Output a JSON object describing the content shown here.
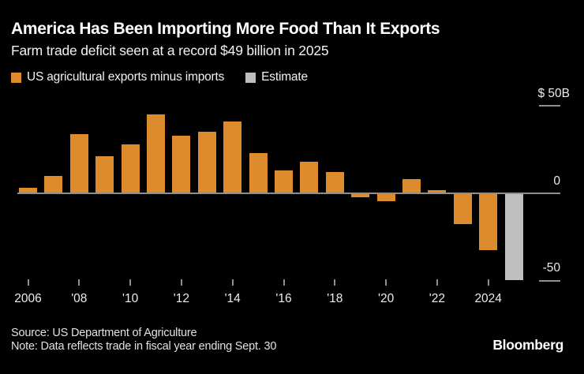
{
  "header": {
    "title": "America Has Been Importing More Food Than It Exports",
    "subtitle": "Farm trade deficit seen at a record $49 billion in 2025"
  },
  "legend": {
    "series": {
      "label": "US agricultural exports minus imports",
      "color": "#DD8C2D"
    },
    "estimate": {
      "label": "Estimate",
      "color": "#BFBFBF"
    }
  },
  "axis": {
    "y_top_label": "$ 50B",
    "y_zero_label": "0",
    "y_bottom_label": "-50",
    "x_tick_labels": [
      "2006",
      "'08",
      "'10",
      "'12",
      "'14",
      "'16",
      "'18",
      "'20",
      "'22",
      "2024"
    ]
  },
  "chart_data": {
    "type": "bar",
    "title": "America Has Been Importing More Food Than It Exports",
    "subtitle": "Farm trade deficit seen at a record $49 billion in 2025",
    "ylabel": "US agricultural exports minus imports, $B",
    "ylim": [
      -50,
      50
    ],
    "grid": false,
    "legend_position": "top-left",
    "categories": [
      2006,
      2007,
      2008,
      2009,
      2010,
      2011,
      2012,
      2013,
      2014,
      2015,
      2016,
      2017,
      2018,
      2019,
      2020,
      2021,
      2022,
      2023,
      2024,
      2025
    ],
    "values": [
      3,
      10,
      34,
      21,
      28,
      45,
      33,
      35,
      41,
      23,
      13,
      18,
      12,
      -2,
      -4,
      8,
      2,
      -17,
      -32,
      -49
    ],
    "estimate_years": [
      2025
    ],
    "series_color": "#DD8C2D",
    "estimate_color": "#BFBFBF"
  },
  "footer": {
    "source": "Source: US Department of Agriculture",
    "note": "Note: Data reflects trade in fiscal year ending Sept. 30",
    "logo": "Bloomberg"
  }
}
